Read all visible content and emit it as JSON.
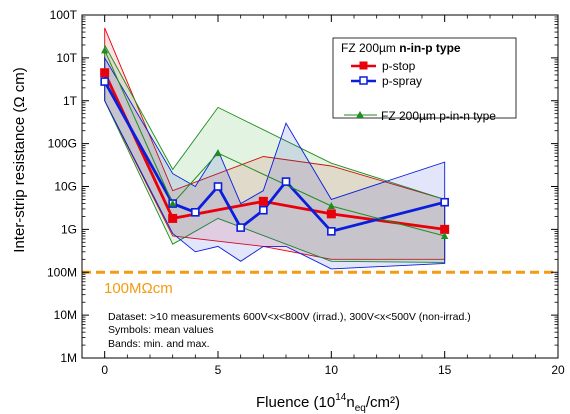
{
  "chart_data": {
    "type": "line",
    "xlabel_main": "Fluence (10",
    "xlabel_exp": "14",
    "xlabel_n": "n",
    "xlabel_sub": "eq",
    "xlabel_tail": "/cm²)",
    "ylabel": "Inter-strip resistance (Ω cm)",
    "xlim": [
      -1,
      20
    ],
    "ylim_log10": [
      6,
      14
    ],
    "x_ticks": [
      0,
      5,
      10,
      15,
      20
    ],
    "y_ticks": [
      {
        "log": 6,
        "label": "1M"
      },
      {
        "log": 7,
        "label": "10M"
      },
      {
        "log": 8,
        "label": "100M"
      },
      {
        "log": 9,
        "label": "1G"
      },
      {
        "log": 10,
        "label": "10G"
      },
      {
        "log": 11,
        "label": "100G"
      },
      {
        "log": 12,
        "label": "1T"
      },
      {
        "log": 13,
        "label": "10T"
      },
      {
        "log": 14,
        "label": "100T"
      }
    ],
    "threshold": {
      "value": 100000000,
      "label": "100MΩcm",
      "color": "#f39c12"
    },
    "legend": {
      "header_prefix": "FZ 200µm ",
      "header_bold": "n-in-p type",
      "items": [
        "p-stop",
        "p-spray"
      ],
      "extra": "FZ 200µm p-in-n type"
    },
    "annotation": [
      "Dataset: >10 measurements 600V<x<800V (irrad.), 300V<x<500V (non-irrad.)",
      "Symbols: mean values",
      "Bands: min. and max."
    ],
    "series": [
      {
        "name": "p-stop",
        "color": "#e8000b",
        "marker": "square-filled",
        "x": [
          0,
          3,
          7,
          10,
          15
        ],
        "y": [
          4500000000000.0,
          1800000000.0,
          4500000000.0,
          2300000000.0,
          1000000000.0
        ],
        "band_max": [
          50000000000000.0,
          8000000000.0,
          50000000000.0,
          30000000000.0,
          5000000000.0
        ],
        "band_min": [
          1000000000000.0,
          700000000.0,
          400000000.0,
          200000000.0,
          200000000.0
        ]
      },
      {
        "name": "p-spray",
        "color": "#0a1edc",
        "marker": "square-open",
        "x": [
          0,
          3,
          4,
          5,
          6,
          7,
          8,
          10,
          15
        ],
        "y": [
          2800000000000.0,
          4000000000.0,
          2500000000.0,
          10000000000.0,
          1100000000.0,
          2800000000.0,
          13000000000.0,
          900000000.0,
          4300000000.0
        ],
        "band_max": [
          10000000000000.0,
          20000000000.0,
          10000000000.0,
          70000000000.0,
          4000000000.0,
          8000000000.0,
          300000000000.0,
          5000000000.0,
          37000000000.0
        ],
        "band_min": [
          1000000000000.0,
          800000000.0,
          300000000.0,
          400000000.0,
          180000000.0,
          400000000.0,
          400000000.0,
          120000000.0,
          160000000.0
        ]
      },
      {
        "name": "FZ 200µm p-in-n type",
        "color": "#1e8c1e",
        "marker": "triangle-filled",
        "x": [
          0,
          3,
          5,
          10,
          15
        ],
        "y": [
          15000000000000.0,
          4000000000.0,
          60000000000.0,
          3500000000.0,
          700000000.0
        ],
        "band_max": [
          20000000000000.0,
          25000000000.0,
          700000000000.0,
          35000000000.0,
          5000000000.0
        ],
        "band_min": [
          1000000000000.0,
          450000000.0,
          1800000000.0,
          180000000.0,
          170000000.0
        ]
      }
    ]
  }
}
